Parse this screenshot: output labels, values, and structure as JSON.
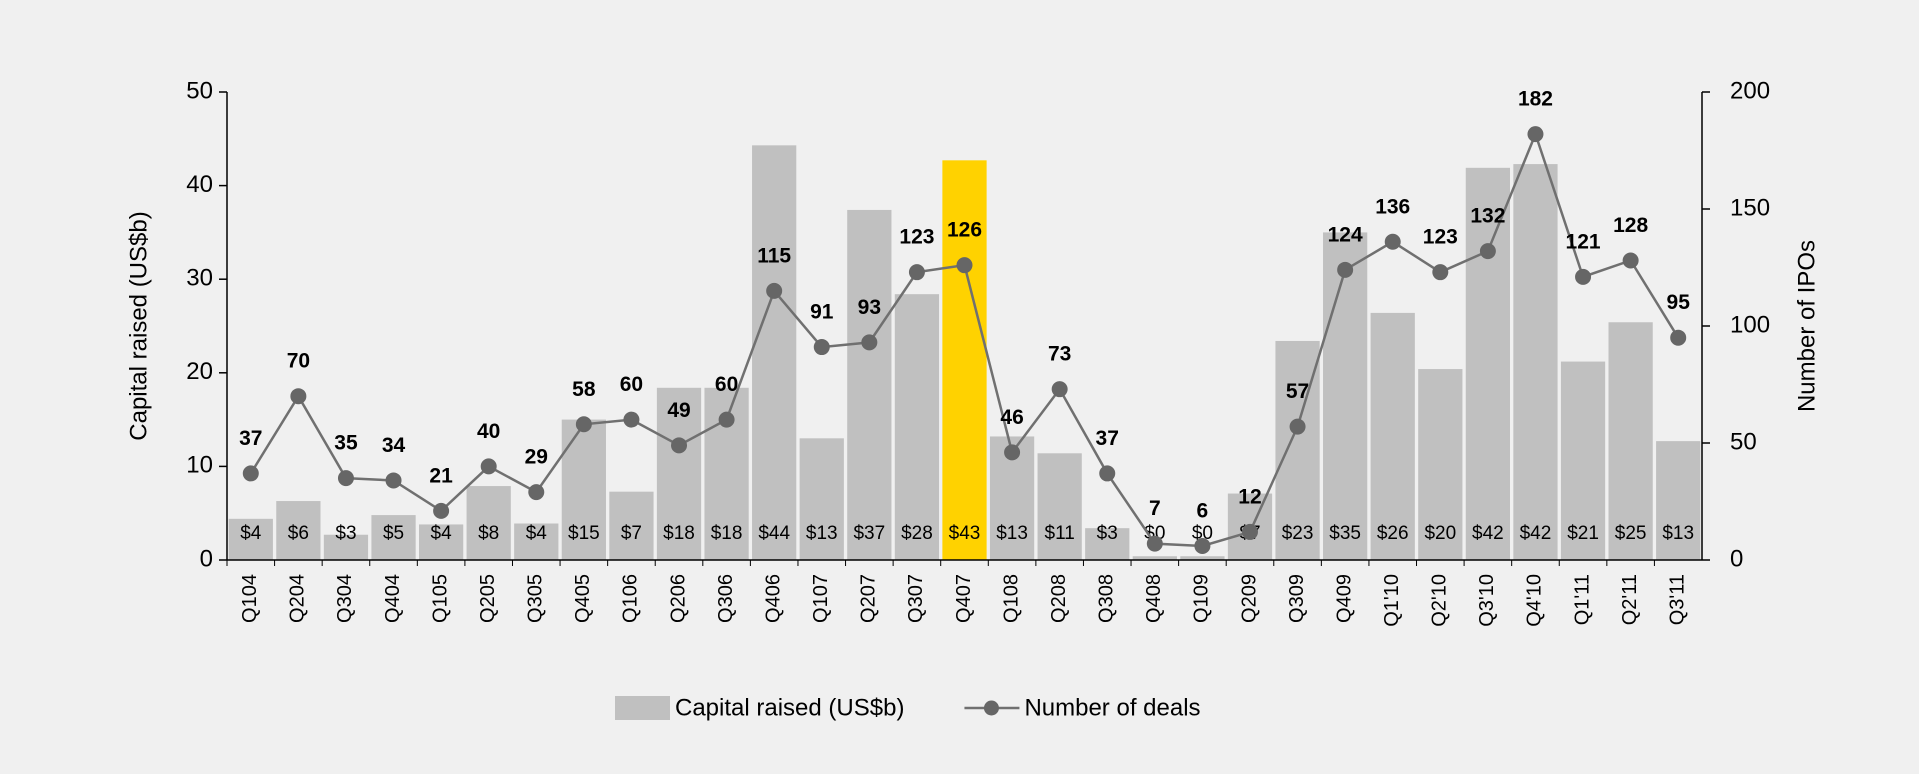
{
  "chart_data": {
    "type": "bar-line",
    "y_label": "Capital raised (US$b)",
    "y2_label": "Number of IPOs",
    "categories": [
      "Q104",
      "Q204",
      "Q304",
      "Q404",
      "Q105",
      "Q205",
      "Q305",
      "Q405",
      "Q106",
      "Q206",
      "Q306",
      "Q406",
      "Q107",
      "Q207",
      "Q307",
      "Q407",
      "Q108",
      "Q208",
      "Q308",
      "Q408",
      "Q109",
      "Q209",
      "Q309",
      "Q409",
      "Q1'10",
      "Q2'10",
      "Q3'10",
      "Q4'10",
      "Q1'11",
      "Q2'11",
      "Q3'11"
    ],
    "series": [
      {
        "name": "Capital raised (US$b)",
        "type": "bar",
        "color": "#c0c0c0",
        "colors": [
          "#c0c0c0",
          "#c0c0c0",
          "#c0c0c0",
          "#c0c0c0",
          "#c0c0c0",
          "#c0c0c0",
          "#c0c0c0",
          "#c0c0c0",
          "#c0c0c0",
          "#c0c0c0",
          "#c0c0c0",
          "#c0c0c0",
          "#c0c0c0",
          "#c0c0c0",
          "#c0c0c0",
          "#ffd200",
          "#c0c0c0",
          "#c0c0c0",
          "#c0c0c0",
          "#c0c0c0",
          "#c0c0c0",
          "#c0c0c0",
          "#c0c0c0",
          "#c0c0c0",
          "#c0c0c0",
          "#c0c0c0",
          "#c0c0c0",
          "#c0c0c0",
          "#c0c0c0",
          "#c0c0c0",
          "#c0c0c0"
        ],
        "values": [
          4.4,
          6.3,
          2.7,
          4.8,
          3.8,
          7.9,
          3.9,
          15.0,
          7.3,
          18.4,
          18.4,
          44.3,
          13.0,
          37.4,
          28.4,
          42.7,
          13.2,
          11.4,
          3.4,
          0.4,
          0.4,
          7.1,
          23.4,
          35.0,
          26.4,
          20.4,
          41.9,
          42.3,
          21.2,
          25.4,
          12.7
        ],
        "value_labels": [
          "$4",
          "$6",
          "$3",
          "$5",
          "$4",
          "$8",
          "$4",
          "$15",
          "$7",
          "$18",
          "$18",
          "$44",
          "$13",
          "$37",
          "$28",
          "$43",
          "$13",
          "$11",
          "$3",
          "$0",
          "$0",
          "$7",
          "$23",
          "$35",
          "$26",
          "$20",
          "$42",
          "$42",
          "$21",
          "$25",
          "$13"
        ]
      },
      {
        "name": "Number of deals",
        "type": "line",
        "axis": "y2",
        "color": "#707070",
        "values": [
          37,
          70,
          35,
          34,
          21,
          40,
          29,
          58,
          60,
          49,
          60,
          115,
          91,
          93,
          123,
          126,
          46,
          73,
          37,
          7,
          6,
          12,
          57,
          124,
          136,
          123,
          132,
          182,
          121,
          128,
          95
        ]
      }
    ],
    "ylim": [
      0,
      50
    ],
    "yticks": [
      0,
      10,
      20,
      30,
      40,
      50
    ],
    "y2lim": [
      0,
      200
    ],
    "y2ticks": [
      0,
      50,
      100,
      150,
      200
    ],
    "legend": "bottom"
  }
}
